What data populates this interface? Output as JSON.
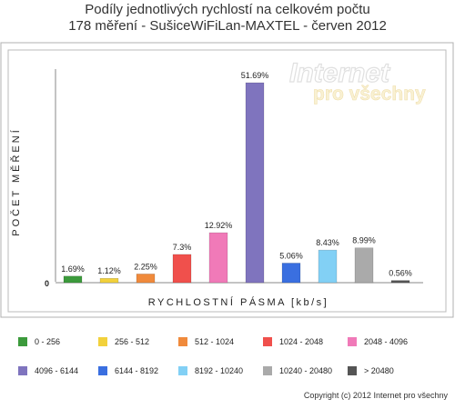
{
  "chart_data": {
    "type": "bar",
    "title": "Podíly jednotlivých rychlostí na celkovém počtu",
    "subtitle": "178 měření - SušiceWiFiLan-MAXTEL - červen 2012",
    "xlabel": "RYCHLOSTNÍ PÁSMA [kb/s]",
    "ylabel": "POČET MĚŘENÍ",
    "y_tick_label": "0",
    "categories": [
      "0 - 256",
      "256 - 512",
      "512 - 1024",
      "1024 - 2048",
      "2048 - 4096",
      "4096 - 6144",
      "6144 - 8192",
      "8192 - 10240",
      "10240 - 20480",
      "> 20480"
    ],
    "values": [
      1.69,
      1.12,
      2.25,
      7.3,
      12.92,
      51.69,
      5.06,
      8.43,
      8.99,
      0.56
    ],
    "value_labels": [
      "1.69%",
      "1.12%",
      "2.25%",
      "7.3%",
      "12.92%",
      "51.69%",
      "5.06%",
      "8.43%",
      "8.99%",
      "0.56%"
    ],
    "colors": [
      "#3c9a3c",
      "#f2d13c",
      "#f08a3c",
      "#f0504c",
      "#f07ab8",
      "#7f74be",
      "#3a6fe0",
      "#82d0f5",
      "#aaaaaa",
      "#555555"
    ],
    "ylim": [
      0,
      55
    ],
    "grid": false,
    "legend_placement": "bottom"
  },
  "watermark": {
    "line1": "Internet",
    "line2": "pro všechny"
  },
  "footer": {
    "copyright": "Copyright (c) 2012 Internet pro všechny"
  }
}
